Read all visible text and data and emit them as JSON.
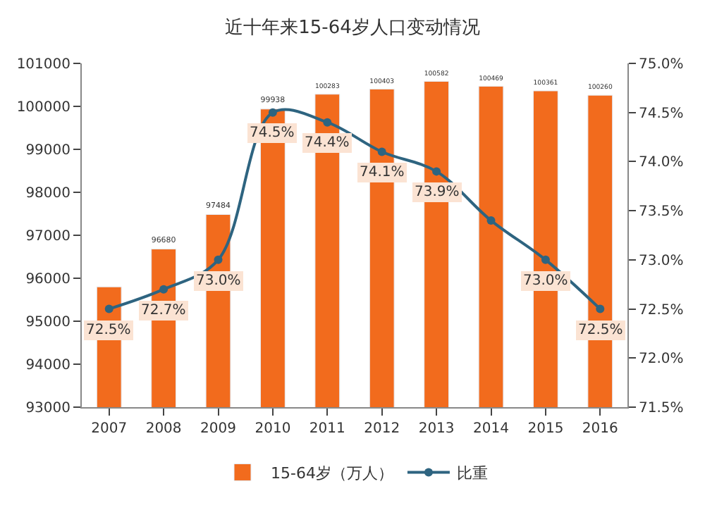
{
  "chart_data": {
    "type": "bar",
    "title": "近十年来15-64岁人口变动情况",
    "categories": [
      "2007",
      "2008",
      "2009",
      "2010",
      "2011",
      "2012",
      "2013",
      "2014",
      "2015",
      "2016"
    ],
    "series": [
      {
        "name": "15-64岁（万人）",
        "color": "#f26b1d",
        "values": [
          95800,
          96680,
          97484,
          99938,
          100283,
          100403,
          100582,
          100469,
          100361,
          100260
        ],
        "value_labels": [
          null,
          "96680",
          "97484",
          "99938",
          "100283",
          "100403",
          "100582",
          "100469",
          "100361",
          "100260"
        ]
      },
      {
        "name": "比重",
        "type": "line",
        "axis": "y2",
        "color": "#2e6480",
        "marker": "circle",
        "values": [
          72.5,
          72.7,
          73.0,
          74.5,
          74.4,
          74.1,
          73.9,
          73.4,
          73.0,
          72.5
        ],
        "value_labels": [
          "72.5%",
          "72.7%",
          "73.0%",
          "74.5%",
          "74.4%",
          "74.1%",
          "73.9%",
          null,
          "73.0%",
          "72.5%"
        ]
      }
    ],
    "ylim": [
      93000,
      101000
    ],
    "yticks": [
      93000,
      94000,
      95000,
      96000,
      97000,
      98000,
      99000,
      100000,
      101000
    ],
    "y2lim": [
      71.5,
      75.0
    ],
    "y2ticks": [
      {
        "value": 71.5,
        "label": "71.5%"
      },
      {
        "value": 72.0,
        "label": "72.0%"
      },
      {
        "value": 72.5,
        "label": "72.5%"
      },
      {
        "value": 73.0,
        "label": "73.0%"
      },
      {
        "value": 73.5,
        "label": "73.5%"
      },
      {
        "value": 74.0,
        "label": "74.0%"
      },
      {
        "value": 74.5,
        "label": "74.5%"
      },
      {
        "value": 75.0,
        "label": "75.0%"
      }
    ],
    "legend": "bottom"
  }
}
